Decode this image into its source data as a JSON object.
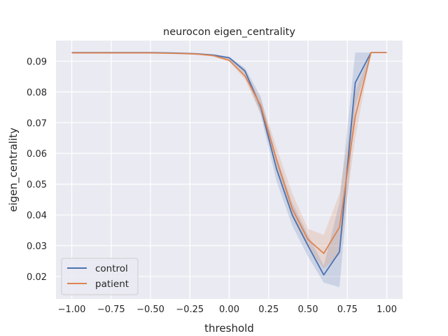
{
  "chart_data": {
    "type": "line",
    "title": "neurocon eigen_centrality",
    "xlabel": "threshold",
    "ylabel": "eigen_centrality",
    "xlim": [
      -1.1,
      1.1
    ],
    "ylim": [
      0.0127,
      0.0967
    ],
    "xticks": [
      -1.0,
      -0.75,
      -0.5,
      -0.25,
      0.0,
      0.25,
      0.5,
      0.75,
      1.0
    ],
    "xtick_labels": [
      "−1.00",
      "−0.75",
      "−0.50",
      "−0.25",
      "0.00",
      "0.25",
      "0.50",
      "0.75",
      "1.00"
    ],
    "yticks": [
      0.02,
      0.03,
      0.04,
      0.05,
      0.06,
      0.07,
      0.08,
      0.09
    ],
    "ytick_labels": [
      "0.02",
      "0.03",
      "0.04",
      "0.05",
      "0.06",
      "0.07",
      "0.08",
      "0.09"
    ],
    "grid": true,
    "legend": "lower left",
    "x": [
      -1.0,
      -0.9,
      -0.8,
      -0.7,
      -0.6,
      -0.5,
      -0.4,
      -0.3,
      -0.2,
      -0.1,
      0.0,
      0.1,
      0.2,
      0.3,
      0.4,
      0.5,
      0.6,
      0.7,
      0.8,
      0.9,
      1.0
    ],
    "series": [
      {
        "name": "control",
        "color": "#4c72b0",
        "values": [
          0.0928,
          0.0928,
          0.0928,
          0.0928,
          0.0928,
          0.0928,
          0.0927,
          0.0926,
          0.0924,
          0.092,
          0.0911,
          0.0868,
          0.075,
          0.055,
          0.04,
          0.03,
          0.0205,
          0.028,
          0.083,
          0.0928,
          0.0928
        ],
        "lower": [
          0.0928,
          0.0928,
          0.0928,
          0.0928,
          0.0928,
          0.0928,
          0.0927,
          0.0926,
          0.0923,
          0.0918,
          0.0907,
          0.0858,
          0.0725,
          0.051,
          0.0365,
          0.0265,
          0.018,
          0.0165,
          0.075,
          0.0928,
          0.0928
        ],
        "upper": [
          0.0928,
          0.0928,
          0.0928,
          0.0928,
          0.0928,
          0.0928,
          0.0928,
          0.0927,
          0.0925,
          0.0922,
          0.0915,
          0.0878,
          0.0785,
          0.059,
          0.044,
          0.0335,
          0.0235,
          0.044,
          0.0928,
          0.0928,
          0.0928
        ]
      },
      {
        "name": "patient",
        "color": "#dd8452",
        "values": [
          0.0927,
          0.0927,
          0.0927,
          0.0927,
          0.0927,
          0.0927,
          0.0926,
          0.0925,
          0.0923,
          0.0918,
          0.0903,
          0.0852,
          0.0755,
          0.058,
          0.042,
          0.032,
          0.0275,
          0.036,
          0.072,
          0.0928,
          0.0928
        ],
        "lower": [
          0.0927,
          0.0927,
          0.0927,
          0.0927,
          0.0927,
          0.0927,
          0.0925,
          0.0924,
          0.0921,
          0.0915,
          0.0898,
          0.084,
          0.073,
          0.0545,
          0.039,
          0.0295,
          0.0225,
          0.027,
          0.065,
          0.0928,
          0.0928
        ],
        "upper": [
          0.0927,
          0.0927,
          0.0927,
          0.0927,
          0.0927,
          0.0927,
          0.0927,
          0.0926,
          0.0925,
          0.0921,
          0.0908,
          0.0864,
          0.0775,
          0.062,
          0.047,
          0.0355,
          0.0335,
          0.047,
          0.08,
          0.0928,
          0.0928
        ]
      }
    ]
  }
}
